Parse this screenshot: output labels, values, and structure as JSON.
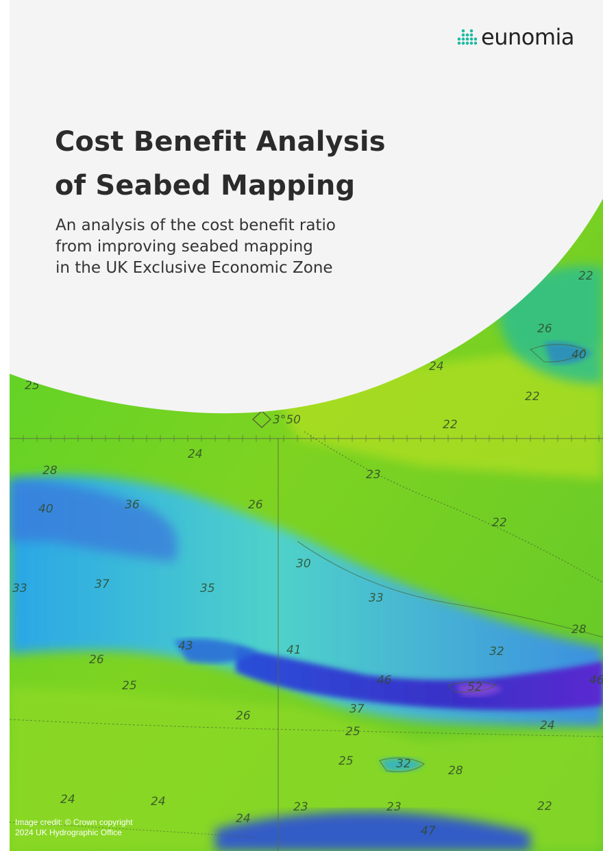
{
  "brand": {
    "name": "eunomia",
    "logo_icon": "dot-grid-icon",
    "logo_color": "#1fb9a2"
  },
  "title": {
    "line1": "Cost Benefit Analysis",
    "line2": "of Seabed Mapping"
  },
  "subtitle": {
    "line1": "An analysis of the cost benefit ratio",
    "line2": "from improving seabed mapping",
    "line3": "in the UK Exclusive Economic Zone"
  },
  "credit": {
    "line1": "Image credit: © Crown copyright",
    "line2": "2024 UK Hydrographic Office"
  },
  "colors": {
    "title_text": "#2b2b2b",
    "panel_background": "#f4f4f4",
    "shallow_water": "#7ed321",
    "deep_water": "#3a2fc8"
  }
}
